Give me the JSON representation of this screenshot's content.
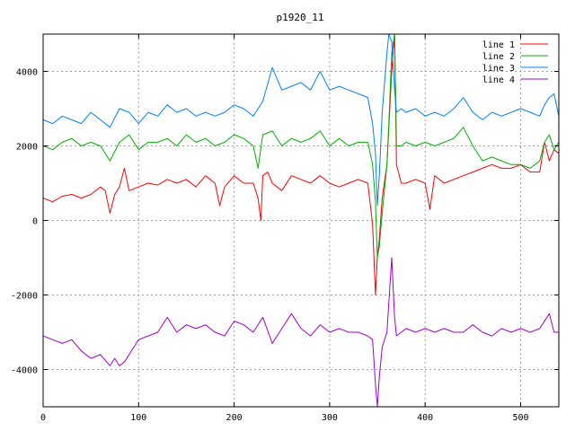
{
  "chart_data": {
    "type": "line",
    "title": "p1920_11",
    "xlabel": "",
    "ylabel": "",
    "xlim": [
      0,
      540
    ],
    "ylim": [
      -5000,
      5000
    ],
    "x_ticks": [
      0,
      100,
      200,
      300,
      400,
      500
    ],
    "y_ticks": [
      -4000,
      -2000,
      0,
      2000,
      4000
    ],
    "grid": true,
    "legend_position": "top-right",
    "series": [
      {
        "name": "line 1",
        "color": "#ff0000",
        "x": [
          0,
          10,
          20,
          30,
          40,
          50,
          60,
          65,
          70,
          75,
          80,
          85,
          90,
          100,
          110,
          120,
          130,
          140,
          150,
          160,
          170,
          180,
          185,
          190,
          200,
          210,
          220,
          225,
          228,
          230,
          235,
          240,
          250,
          260,
          270,
          280,
          290,
          300,
          310,
          320,
          330,
          340,
          345,
          348,
          350,
          352,
          355,
          360,
          362,
          365,
          368,
          370,
          375,
          380,
          390,
          400,
          405,
          410,
          420,
          430,
          440,
          450,
          460,
          470,
          480,
          490,
          500,
          510,
          520,
          525,
          530,
          535,
          540
        ],
        "y": [
          600,
          500,
          650,
          700,
          600,
          700,
          900,
          800,
          200,
          700,
          900,
          1400,
          800,
          900,
          1000,
          950,
          1100,
          1000,
          1100,
          900,
          1200,
          1000,
          400,
          900,
          1200,
          1000,
          1000,
          600,
          0,
          1200,
          1300,
          1000,
          800,
          1200,
          1100,
          1000,
          1200,
          1000,
          900,
          1000,
          1100,
          1000,
          -100,
          -2000,
          -1000,
          -500,
          600,
          1500,
          2500,
          4000,
          5000,
          1500,
          1000,
          1000,
          1100,
          1000,
          300,
          1200,
          1000,
          1100,
          1200,
          1300,
          1400,
          1500,
          1400,
          1400,
          1500,
          1300,
          1300,
          2100,
          1600,
          1900,
          1800
        ]
      },
      {
        "name": "line 2",
        "color": "#00b000",
        "x": [
          0,
          10,
          20,
          30,
          40,
          50,
          60,
          70,
          80,
          90,
          100,
          110,
          120,
          130,
          140,
          150,
          160,
          170,
          180,
          190,
          200,
          210,
          220,
          225,
          230,
          240,
          250,
          260,
          270,
          280,
          290,
          300,
          310,
          320,
          330,
          340,
          345,
          348,
          350,
          352,
          355,
          360,
          362,
          365,
          368,
          370,
          375,
          380,
          390,
          400,
          410,
          420,
          430,
          440,
          450,
          460,
          470,
          480,
          490,
          500,
          510,
          520,
          525,
          530,
          535,
          540
        ],
        "y": [
          2000,
          1900,
          2100,
          2200,
          2000,
          2100,
          2000,
          1600,
          2100,
          2300,
          1900,
          2100,
          2100,
          2200,
          2000,
          2300,
          2100,
          2200,
          2000,
          2100,
          2300,
          2200,
          2000,
          1400,
          2300,
          2400,
          2000,
          2200,
          2100,
          2200,
          2400,
          2000,
          2200,
          2000,
          2100,
          2100,
          1500,
          500,
          -1000,
          -700,
          200,
          1500,
          2600,
          4500,
          5000,
          2000,
          2000,
          2100,
          2000,
          2100,
          2000,
          2100,
          2200,
          2500,
          2000,
          1600,
          1700,
          1600,
          1500,
          1500,
          1400,
          1600,
          2100,
          2300,
          1900,
          2100
        ]
      },
      {
        "name": "line 3",
        "color": "#0080ff",
        "x": [
          0,
          10,
          20,
          30,
          40,
          50,
          60,
          70,
          80,
          90,
          100,
          110,
          120,
          130,
          140,
          150,
          160,
          170,
          180,
          190,
          200,
          210,
          220,
          225,
          230,
          240,
          250,
          260,
          270,
          280,
          290,
          300,
          310,
          320,
          330,
          340,
          345,
          348,
          350,
          352,
          355,
          360,
          362,
          365,
          368,
          370,
          375,
          380,
          390,
          400,
          410,
          420,
          430,
          440,
          450,
          460,
          470,
          480,
          490,
          500,
          510,
          520,
          525,
          530,
          535,
          540
        ],
        "y": [
          2700,
          2600,
          2800,
          2700,
          2600,
          2900,
          2700,
          2500,
          3000,
          2900,
          2600,
          2900,
          2800,
          3100,
          2900,
          3000,
          2800,
          2900,
          2800,
          2900,
          3100,
          3000,
          2800,
          3000,
          3200,
          4100,
          3500,
          3600,
          3700,
          3500,
          4000,
          3500,
          3600,
          3500,
          3400,
          3300,
          2600,
          1800,
          400,
          1200,
          2900,
          4500,
          5000,
          4800,
          3500,
          2900,
          3000,
          2900,
          3000,
          2800,
          2900,
          2800,
          3000,
          3300,
          2900,
          2700,
          2900,
          2800,
          2900,
          3000,
          2900,
          2800,
          3100,
          3300,
          3400,
          2800
        ]
      },
      {
        "name": "line 4",
        "color": "#a000d0",
        "x": [
          0,
          10,
          20,
          30,
          40,
          50,
          60,
          70,
          75,
          80,
          85,
          90,
          100,
          110,
          120,
          130,
          140,
          150,
          160,
          170,
          180,
          190,
          200,
          210,
          220,
          230,
          240,
          250,
          260,
          270,
          280,
          290,
          300,
          310,
          320,
          330,
          340,
          345,
          348,
          350,
          352,
          355,
          360,
          362,
          365,
          368,
          370,
          375,
          380,
          390,
          400,
          410,
          420,
          430,
          440,
          450,
          460,
          470,
          480,
          490,
          500,
          510,
          520,
          530,
          535,
          540
        ],
        "y": [
          -3100,
          -3200,
          -3300,
          -3200,
          -3500,
          -3700,
          -3600,
          -3900,
          -3700,
          -3900,
          -3800,
          -3600,
          -3200,
          -3100,
          -3000,
          -2600,
          -3000,
          -2800,
          -2900,
          -2800,
          -3000,
          -3100,
          -2700,
          -2800,
          -3000,
          -2600,
          -3300,
          -2900,
          -2500,
          -2900,
          -3100,
          -2800,
          -3000,
          -2900,
          -3000,
          -3000,
          -3100,
          -3200,
          -4400,
          -5000,
          -4200,
          -3400,
          -3000,
          -2200,
          -1000,
          -2600,
          -3100,
          -3000,
          -2900,
          -3000,
          -2900,
          -3000,
          -2900,
          -3000,
          -3000,
          -2800,
          -3000,
          -3100,
          -2900,
          -3000,
          -2900,
          -3000,
          -2900,
          -2500,
          -3000,
          -3000
        ]
      }
    ]
  }
}
